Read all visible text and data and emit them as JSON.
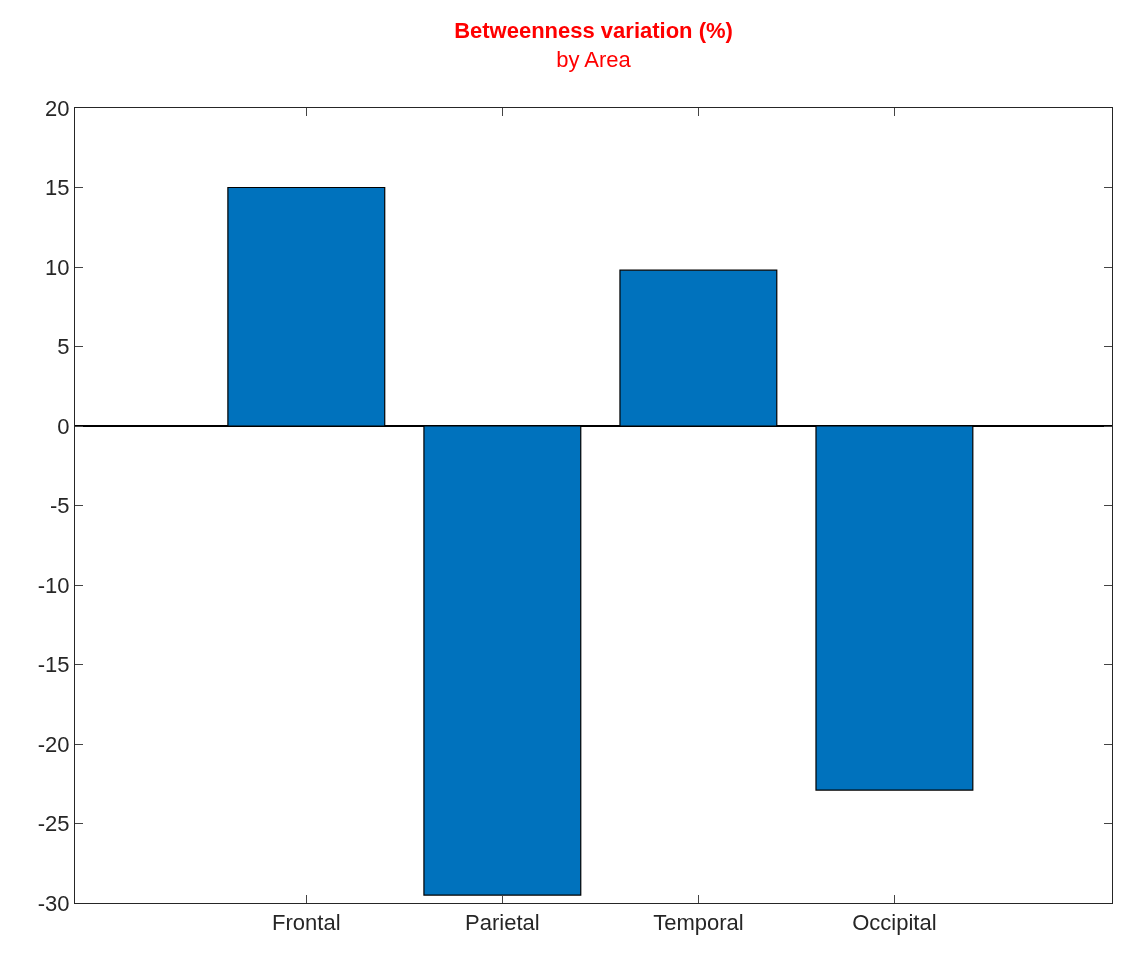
{
  "chart_data": {
    "type": "bar",
    "title": "Betweenness variation (%)",
    "subtitle": "by Area",
    "categories": [
      "Frontal",
      "Parietal",
      "Temporal",
      "Occipital"
    ],
    "values": [
      15,
      -29.5,
      9.8,
      -22.9
    ],
    "color": "#0072bd",
    "ylim": [
      -30,
      20
    ],
    "yticks": [
      -30,
      -25,
      -20,
      -15,
      -10,
      -5,
      0,
      5,
      10,
      15,
      20
    ]
  }
}
